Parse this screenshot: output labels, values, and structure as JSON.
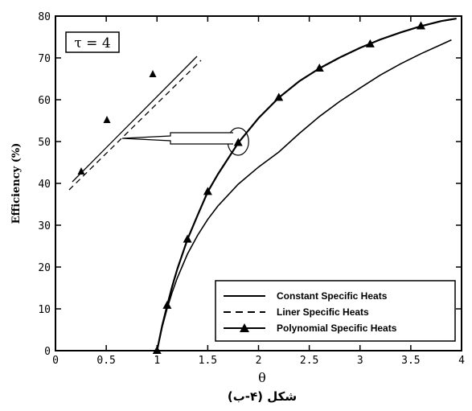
{
  "chart_data": {
    "type": "line",
    "title": "",
    "xlabel": "θ",
    "ylabel": "Efficiency (%)",
    "xlim": [
      0,
      4
    ],
    "ylim": [
      0,
      80
    ],
    "xticks": [
      "0",
      "0.5",
      "1",
      "1.5",
      "2",
      "2.5",
      "3",
      "3.5",
      "4"
    ],
    "yticks": [
      "0",
      "10",
      "20",
      "30",
      "40",
      "50",
      "60",
      "70",
      "80"
    ],
    "annotation": "τ = 4",
    "caption": "شكل (۴-ب)",
    "legend_position": "bottom-right",
    "series": [
      {
        "name": "Constant Specific Heats",
        "line": "solid",
        "x": [
          1.0,
          1.05,
          1.1,
          1.15,
          1.2,
          1.3,
          1.4,
          1.5,
          1.6,
          1.8,
          2.0,
          2.2,
          2.4,
          2.6,
          2.8,
          3.0,
          3.2,
          3.4,
          3.6,
          3.8,
          3.9
        ],
        "values": [
          0,
          5.6,
          10.1,
          14.0,
          17.4,
          23.1,
          27.6,
          31.4,
          34.6,
          39.8,
          43.9,
          47.5,
          51.9,
          56.0,
          59.6,
          62.8,
          65.9,
          68.6,
          71.0,
          73.2,
          74.3
        ]
      },
      {
        "name": "Liner Specific Heats",
        "line": "dashed",
        "x": [
          1.0,
          1.05,
          1.1,
          1.15,
          1.2,
          1.3,
          1.4,
          1.5,
          1.6,
          1.8,
          2.0,
          2.2,
          2.4,
          2.6,
          2.8,
          3.0,
          3.2,
          3.4,
          3.6,
          3.8,
          3.95
        ],
        "values": [
          0,
          5.9,
          10.8,
          15.4,
          19.5,
          26.6,
          32.4,
          38.0,
          42.2,
          49.7,
          55.6,
          60.5,
          64.4,
          67.5,
          70.1,
          72.4,
          74.4,
          76.1,
          77.6,
          78.8,
          79.4
        ]
      },
      {
        "name": "Polynomial Specific Heats",
        "line": "solid-triangle",
        "x": [
          1.0,
          1.05,
          1.1,
          1.15,
          1.2,
          1.3,
          1.4,
          1.5,
          1.6,
          1.8,
          2.0,
          2.2,
          2.4,
          2.6,
          2.8,
          3.0,
          3.2,
          3.4,
          3.6,
          3.8,
          3.95
        ],
        "values": [
          0,
          5.9,
          10.8,
          15.4,
          19.5,
          26.6,
          32.4,
          38.0,
          42.2,
          49.7,
          55.6,
          60.5,
          64.4,
          67.5,
          70.1,
          72.4,
          74.4,
          76.1,
          77.6,
          78.8,
          79.4
        ],
        "markers_x": [
          1.0,
          1.1,
          1.3,
          1.5,
          1.8,
          2.2,
          2.6,
          3.1,
          3.6
        ],
        "markers_y": [
          0,
          10.8,
          26.6,
          38.0,
          49.7,
          60.5,
          67.5,
          73.3,
          77.6
        ]
      }
    ],
    "inset": {
      "description": "zoom near θ = 1.8",
      "solid_with_triangles_y": [
        43.6,
        55.5,
        66.1
      ],
      "dashed_offset": true
    }
  }
}
